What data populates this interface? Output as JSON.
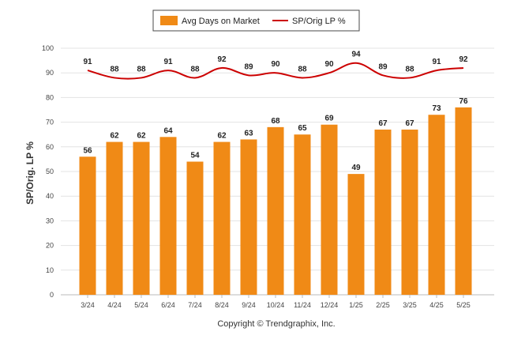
{
  "chart_data": {
    "type": "bar",
    "categories": [
      "3/24",
      "4/24",
      "5/24",
      "6/24",
      "7/24",
      "8/24",
      "9/24",
      "10/24",
      "11/24",
      "12/24",
      "1/25",
      "2/25",
      "3/25",
      "4/25",
      "5/25"
    ],
    "series": [
      {
        "name": "Avg Days on Market",
        "type": "bar",
        "color": "#f08a16",
        "values": [
          56,
          62,
          62,
          64,
          54,
          62,
          63,
          68,
          65,
          69,
          49,
          67,
          67,
          73,
          76
        ]
      },
      {
        "name": "SP/Orig LP %",
        "type": "line",
        "color": "#cc0000",
        "values": [
          91,
          88,
          88,
          91,
          88,
          92,
          89,
          90,
          88,
          90,
          94,
          89,
          88,
          91,
          92
        ]
      }
    ],
    "ylabel": "SP/Orig. LP %",
    "ylim": [
      0,
      100
    ],
    "yticks": [
      0,
      10,
      20,
      30,
      40,
      50,
      60,
      70,
      80,
      90,
      100
    ],
    "grid": true,
    "legend_position": "top-center",
    "footer": "Copyright © Trendgraphix, Inc."
  }
}
